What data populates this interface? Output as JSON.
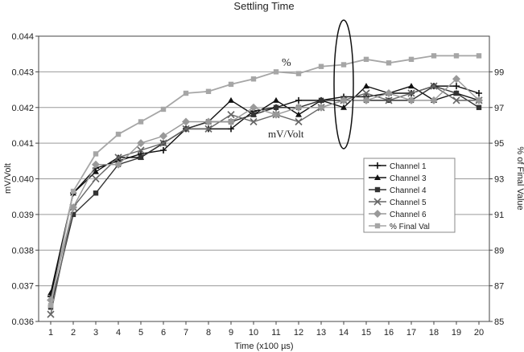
{
  "chart_data": {
    "type": "line",
    "title": "Settling Time",
    "xlabel": "Time (x100 µs)",
    "ylabel_left": "mV/Volt",
    "ylabel_right": "% of Final Value",
    "x": [
      1,
      2,
      3,
      4,
      5,
      6,
      7,
      8,
      9,
      10,
      11,
      12,
      13,
      14,
      15,
      16,
      17,
      18,
      19,
      20
    ],
    "x_ticks": [
      "1",
      "2",
      "3",
      "4",
      "5",
      "6",
      "7",
      "8",
      "9",
      "10",
      "11",
      "12",
      "13",
      "14",
      "15",
      "16",
      "17",
      "18",
      "19",
      "20"
    ],
    "ylim_left": [
      0.036,
      0.044
    ],
    "yticks_left": [
      "0.036",
      "0.037",
      "0.038",
      "0.039",
      "0.040",
      "0.041",
      "0.042",
      "0.043",
      "0.044"
    ],
    "ylim_right": [
      85,
      101
    ],
    "yticks_right": [
      "85",
      "87",
      "89",
      "91",
      "93",
      "95",
      "97",
      "99"
    ],
    "grid": true,
    "legend_position": "right-middle",
    "series": [
      {
        "name": "Channel 1",
        "axis": "left",
        "marker": "plus",
        "color": "#111111",
        "values": [
          0.0367,
          0.0396,
          0.0403,
          0.0405,
          0.0407,
          0.0408,
          0.0414,
          0.0414,
          0.0414,
          0.0419,
          0.042,
          0.0422,
          0.0422,
          0.0423,
          0.0423,
          0.0424,
          0.0424,
          0.0426,
          0.0426,
          0.0424
        ]
      },
      {
        "name": "Channel 3",
        "axis": "left",
        "marker": "triangle",
        "color": "#111111",
        "values": [
          0.0368,
          0.0396,
          0.0402,
          0.0406,
          0.0406,
          0.041,
          0.0414,
          0.0416,
          0.0422,
          0.0418,
          0.0422,
          0.0418,
          0.0422,
          0.042,
          0.0426,
          0.0424,
          0.0426,
          0.0422,
          0.0424,
          0.0422
        ]
      },
      {
        "name": "Channel 4",
        "axis": "left",
        "marker": "square",
        "color": "#333333",
        "values": [
          0.0364,
          0.039,
          0.0396,
          0.0404,
          0.0406,
          0.041,
          0.0414,
          0.0416,
          0.0416,
          0.0418,
          0.042,
          0.042,
          0.0422,
          0.0422,
          0.0422,
          0.0422,
          0.0422,
          0.0426,
          0.0424,
          0.042
        ]
      },
      {
        "name": "Channel 5",
        "axis": "left",
        "marker": "x",
        "color": "#666666",
        "values": [
          0.0362,
          0.0392,
          0.04,
          0.0406,
          0.0408,
          0.041,
          0.0414,
          0.0414,
          0.0418,
          0.0416,
          0.0418,
          0.0416,
          0.042,
          0.0422,
          0.0424,
          0.0422,
          0.0424,
          0.0426,
          0.0422,
          0.0422
        ]
      },
      {
        "name": "Channel 6",
        "axis": "left",
        "marker": "diamond",
        "color": "#999999",
        "values": [
          0.0366,
          0.0392,
          0.0404,
          0.0404,
          0.041,
          0.0412,
          0.0416,
          0.0416,
          0.0416,
          0.042,
          0.0418,
          0.042,
          0.042,
          0.0422,
          0.0422,
          0.0424,
          0.0422,
          0.0422,
          0.0428,
          0.0422
        ]
      },
      {
        "name": "% Final Val",
        "axis": "right",
        "marker": "square",
        "color": "#a6a6a6",
        "values": [
          85.9,
          92.3,
          94.4,
          95.5,
          96.2,
          96.9,
          97.8,
          97.9,
          98.3,
          98.6,
          99.0,
          98.9,
          99.3,
          99.4,
          99.7,
          99.5,
          99.7,
          99.9,
          99.9,
          99.9
        ]
      }
    ],
    "annotations": [
      {
        "text": "%"
      },
      {
        "text": "mV/Volt"
      }
    ]
  }
}
